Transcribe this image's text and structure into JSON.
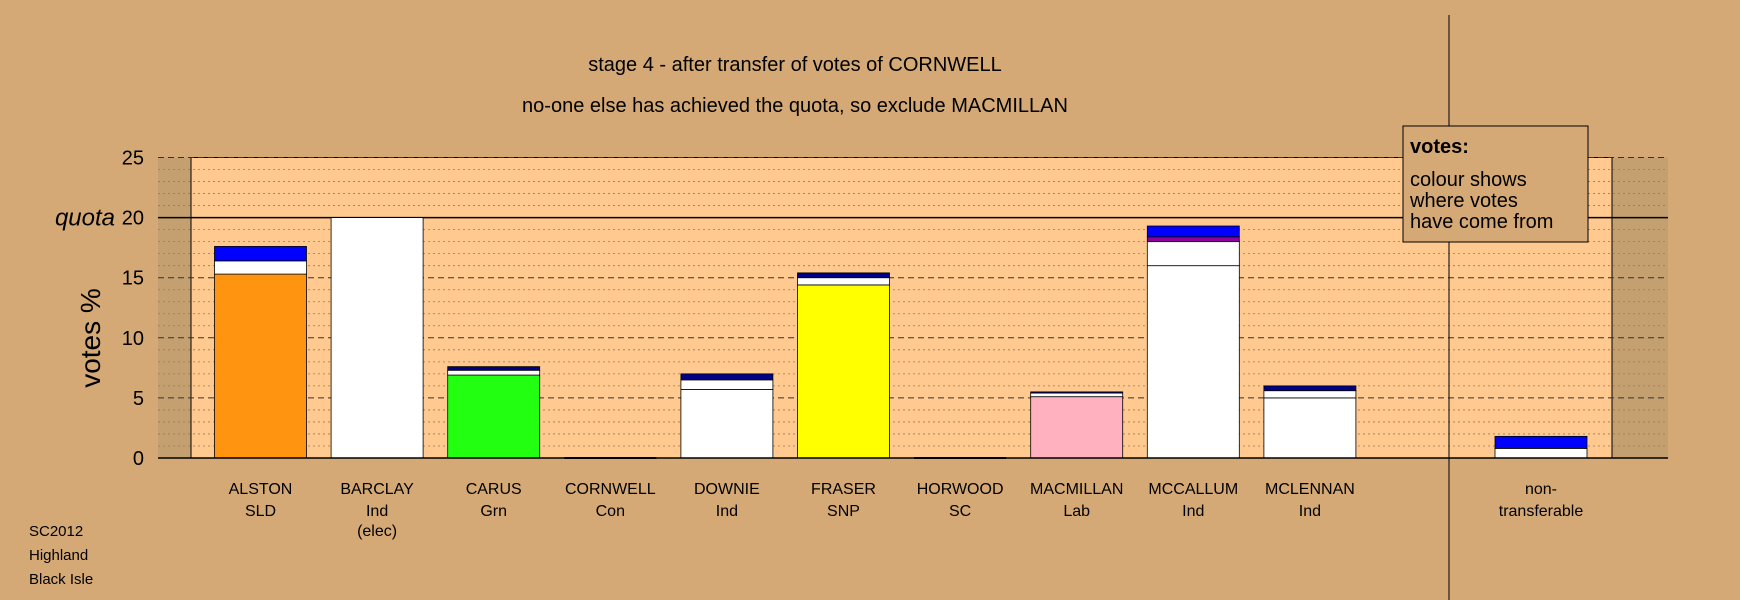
{
  "chart_data": {
    "type": "bar",
    "stacked": true,
    "title": "stage 4 - after transfer of votes of CORNWELL",
    "subtitle": "no-one else has achieved the quota, so exclude MACMILLAN",
    "ylabel": "votes %",
    "ylim": [
      0,
      25
    ],
    "yticks": [
      0,
      5,
      10,
      15,
      20,
      25
    ],
    "quota": 20,
    "quota_label": "quota",
    "grid": true,
    "legend_position": "top-right",
    "legend": {
      "title": "votes:",
      "lines": [
        "colour shows",
        "where votes",
        "have come from"
      ]
    },
    "candidates": [
      {
        "name": "ALSTON",
        "party": "SLD",
        "note": "",
        "segments": [
          {
            "from": "own",
            "value": 15.3,
            "color": "#FF9410"
          },
          {
            "from": "BARCLAY",
            "value": 1.1,
            "color": "#FFFFFF"
          },
          {
            "from": "CORNWELL",
            "value": 1.2,
            "color": "#0000FF"
          }
        ]
      },
      {
        "name": "BARCLAY",
        "party": "Ind",
        "note": "(elec)",
        "segments": [
          {
            "from": "own",
            "value": 20.0,
            "color": "#FFFFFF"
          }
        ]
      },
      {
        "name": "CARUS",
        "party": "Grn",
        "note": "",
        "segments": [
          {
            "from": "own",
            "value": 6.9,
            "color": "#22FF11"
          },
          {
            "from": "BARCLAY",
            "value": 0.4,
            "color": "#FFFFFF"
          },
          {
            "from": "CORNWELL",
            "value": 0.3,
            "color": "#000088"
          }
        ]
      },
      {
        "name": "CORNWELL",
        "party": "Con",
        "note": "",
        "segments": []
      },
      {
        "name": "DOWNIE",
        "party": "Ind",
        "note": "",
        "segments": [
          {
            "from": "own",
            "value": 5.7,
            "color": "#FFFFFF"
          },
          {
            "from": "BARCLAY",
            "value": 0.8,
            "color": "#FFFFFF"
          },
          {
            "from": "CORNWELL",
            "value": 0.5,
            "color": "#000088"
          }
        ]
      },
      {
        "name": "FRASER",
        "party": "SNP",
        "note": "",
        "segments": [
          {
            "from": "own",
            "value": 14.4,
            "color": "#FFFF00"
          },
          {
            "from": "BARCLAY",
            "value": 0.6,
            "color": "#FFFFFF"
          },
          {
            "from": "CORNWELL",
            "value": 0.4,
            "color": "#000088"
          }
        ]
      },
      {
        "name": "HORWOOD",
        "party": "SC",
        "note": "",
        "segments": []
      },
      {
        "name": "MACMILLAN",
        "party": "Lab",
        "note": "",
        "segments": [
          {
            "from": "own",
            "value": 5.1,
            "color": "#FFB1C0"
          },
          {
            "from": "BARCLAY",
            "value": 0.3,
            "color": "#FFFFFF"
          },
          {
            "from": "CORNWELL",
            "value": 0.1,
            "color": "#000088"
          }
        ]
      },
      {
        "name": "MCCALLUM",
        "party": "Ind",
        "note": "",
        "segments": [
          {
            "from": "own",
            "value": 16.0,
            "color": "#FFFFFF"
          },
          {
            "from": "BARCLAY",
            "value": 2.0,
            "color": "#FFFFFF"
          },
          {
            "from": "CORNWELL",
            "value": 0.4,
            "color": "#9000A0"
          },
          {
            "from": "CORNWELL",
            "value": 0.9,
            "color": "#0000FF"
          }
        ]
      },
      {
        "name": "MCLENNAN",
        "party": "Ind",
        "note": "",
        "segments": [
          {
            "from": "own",
            "value": 5.0,
            "color": "#FFFFFF"
          },
          {
            "from": "BARCLAY",
            "value": 0.6,
            "color": "#FFFFFF"
          },
          {
            "from": "CORNWELL",
            "value": 0.4,
            "color": "#000088"
          }
        ]
      }
    ],
    "non_transferable": {
      "label_line1": "non-",
      "label_line2": "transferable",
      "segments": [
        {
          "from": "BARCLAY",
          "value": 0.8,
          "color": "#FFFFFF"
        },
        {
          "from": "CORNWELL",
          "value": 1.0,
          "color": "#0000FF"
        }
      ]
    }
  },
  "colors": {
    "background": "#D4A976",
    "plot_area": "#FFC98F",
    "plot_side_shade": "#C4A070"
  },
  "footer": {
    "line1": "SC2012",
    "line2": "Highland",
    "line3": "Black Isle"
  }
}
